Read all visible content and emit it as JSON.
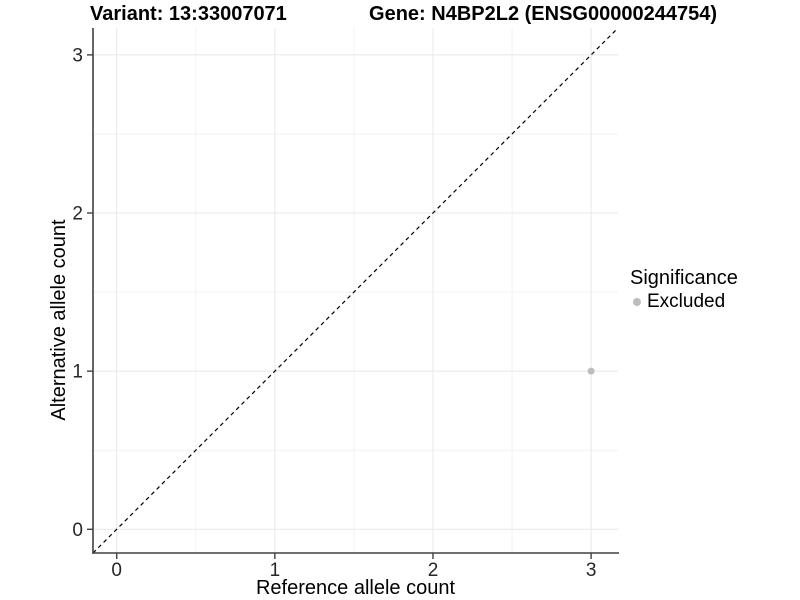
{
  "chart_data": {
    "type": "scatter",
    "title_left": "Variant: 13:33007071",
    "title_right": "Gene: N4BP2L2 (ENSG00000244754)",
    "xlabel": "Reference allele count",
    "ylabel": "Alternative allele count",
    "xlim": [
      -0.15,
      3.17
    ],
    "ylim": [
      -0.15,
      3.17
    ],
    "xticks": [
      0,
      1,
      2,
      3
    ],
    "yticks": [
      0,
      1,
      2,
      3
    ],
    "minor_xticks": [
      0.5,
      1.5,
      2.5
    ],
    "minor_yticks": [
      0.5,
      1.5,
      2.5
    ],
    "grid": "major+minor",
    "points": [
      {
        "x": 3,
        "y": 1,
        "series": "Excluded"
      }
    ],
    "reference_line": {
      "style": "dashed",
      "slope": 1,
      "intercept": 0,
      "color": "#000000"
    },
    "legend": {
      "title": "Significance",
      "position": "right",
      "entries": [
        {
          "label": "Excluded",
          "color": "#bdbdbd"
        }
      ]
    },
    "colors": {
      "point": "#bdbdbd",
      "grid_major": "#e8e8e8",
      "grid_minor": "#f2f2f2",
      "axis_line": "#404040",
      "tick_mark": "#404040",
      "tick_label": "#262626",
      "title": "#000000"
    }
  }
}
